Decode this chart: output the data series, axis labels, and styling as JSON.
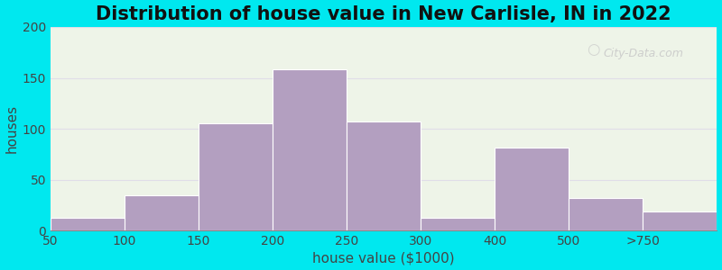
{
  "title": "Distribution of house value in New Carlisle, IN in 2022",
  "xlabel": "house value ($1000)",
  "ylabel": "houses",
  "bar_labels": [
    "50",
    "100",
    "150",
    "200",
    "250",
    "300",
    "400",
    "500",
    ">750"
  ],
  "bar_values": [
    13,
    35,
    105,
    158,
    107,
    13,
    82,
    32,
    19
  ],
  "bar_color": "#b39fc0",
  "bar_edgecolor": "#ffffff",
  "ylim": [
    0,
    200
  ],
  "yticks": [
    0,
    50,
    100,
    150,
    200
  ],
  "background_outer": "#00e8ef",
  "background_inner": "#eef4e8",
  "title_fontsize": 15,
  "title_fontweight": "bold",
  "axis_label_fontsize": 11,
  "tick_fontsize": 10,
  "watermark_text": "City-Data.com",
  "watermark_color": "#c8c8c8",
  "grid_color": "#e0dde8",
  "figsize": [
    8.0,
    3.0
  ],
  "dpi": 100
}
